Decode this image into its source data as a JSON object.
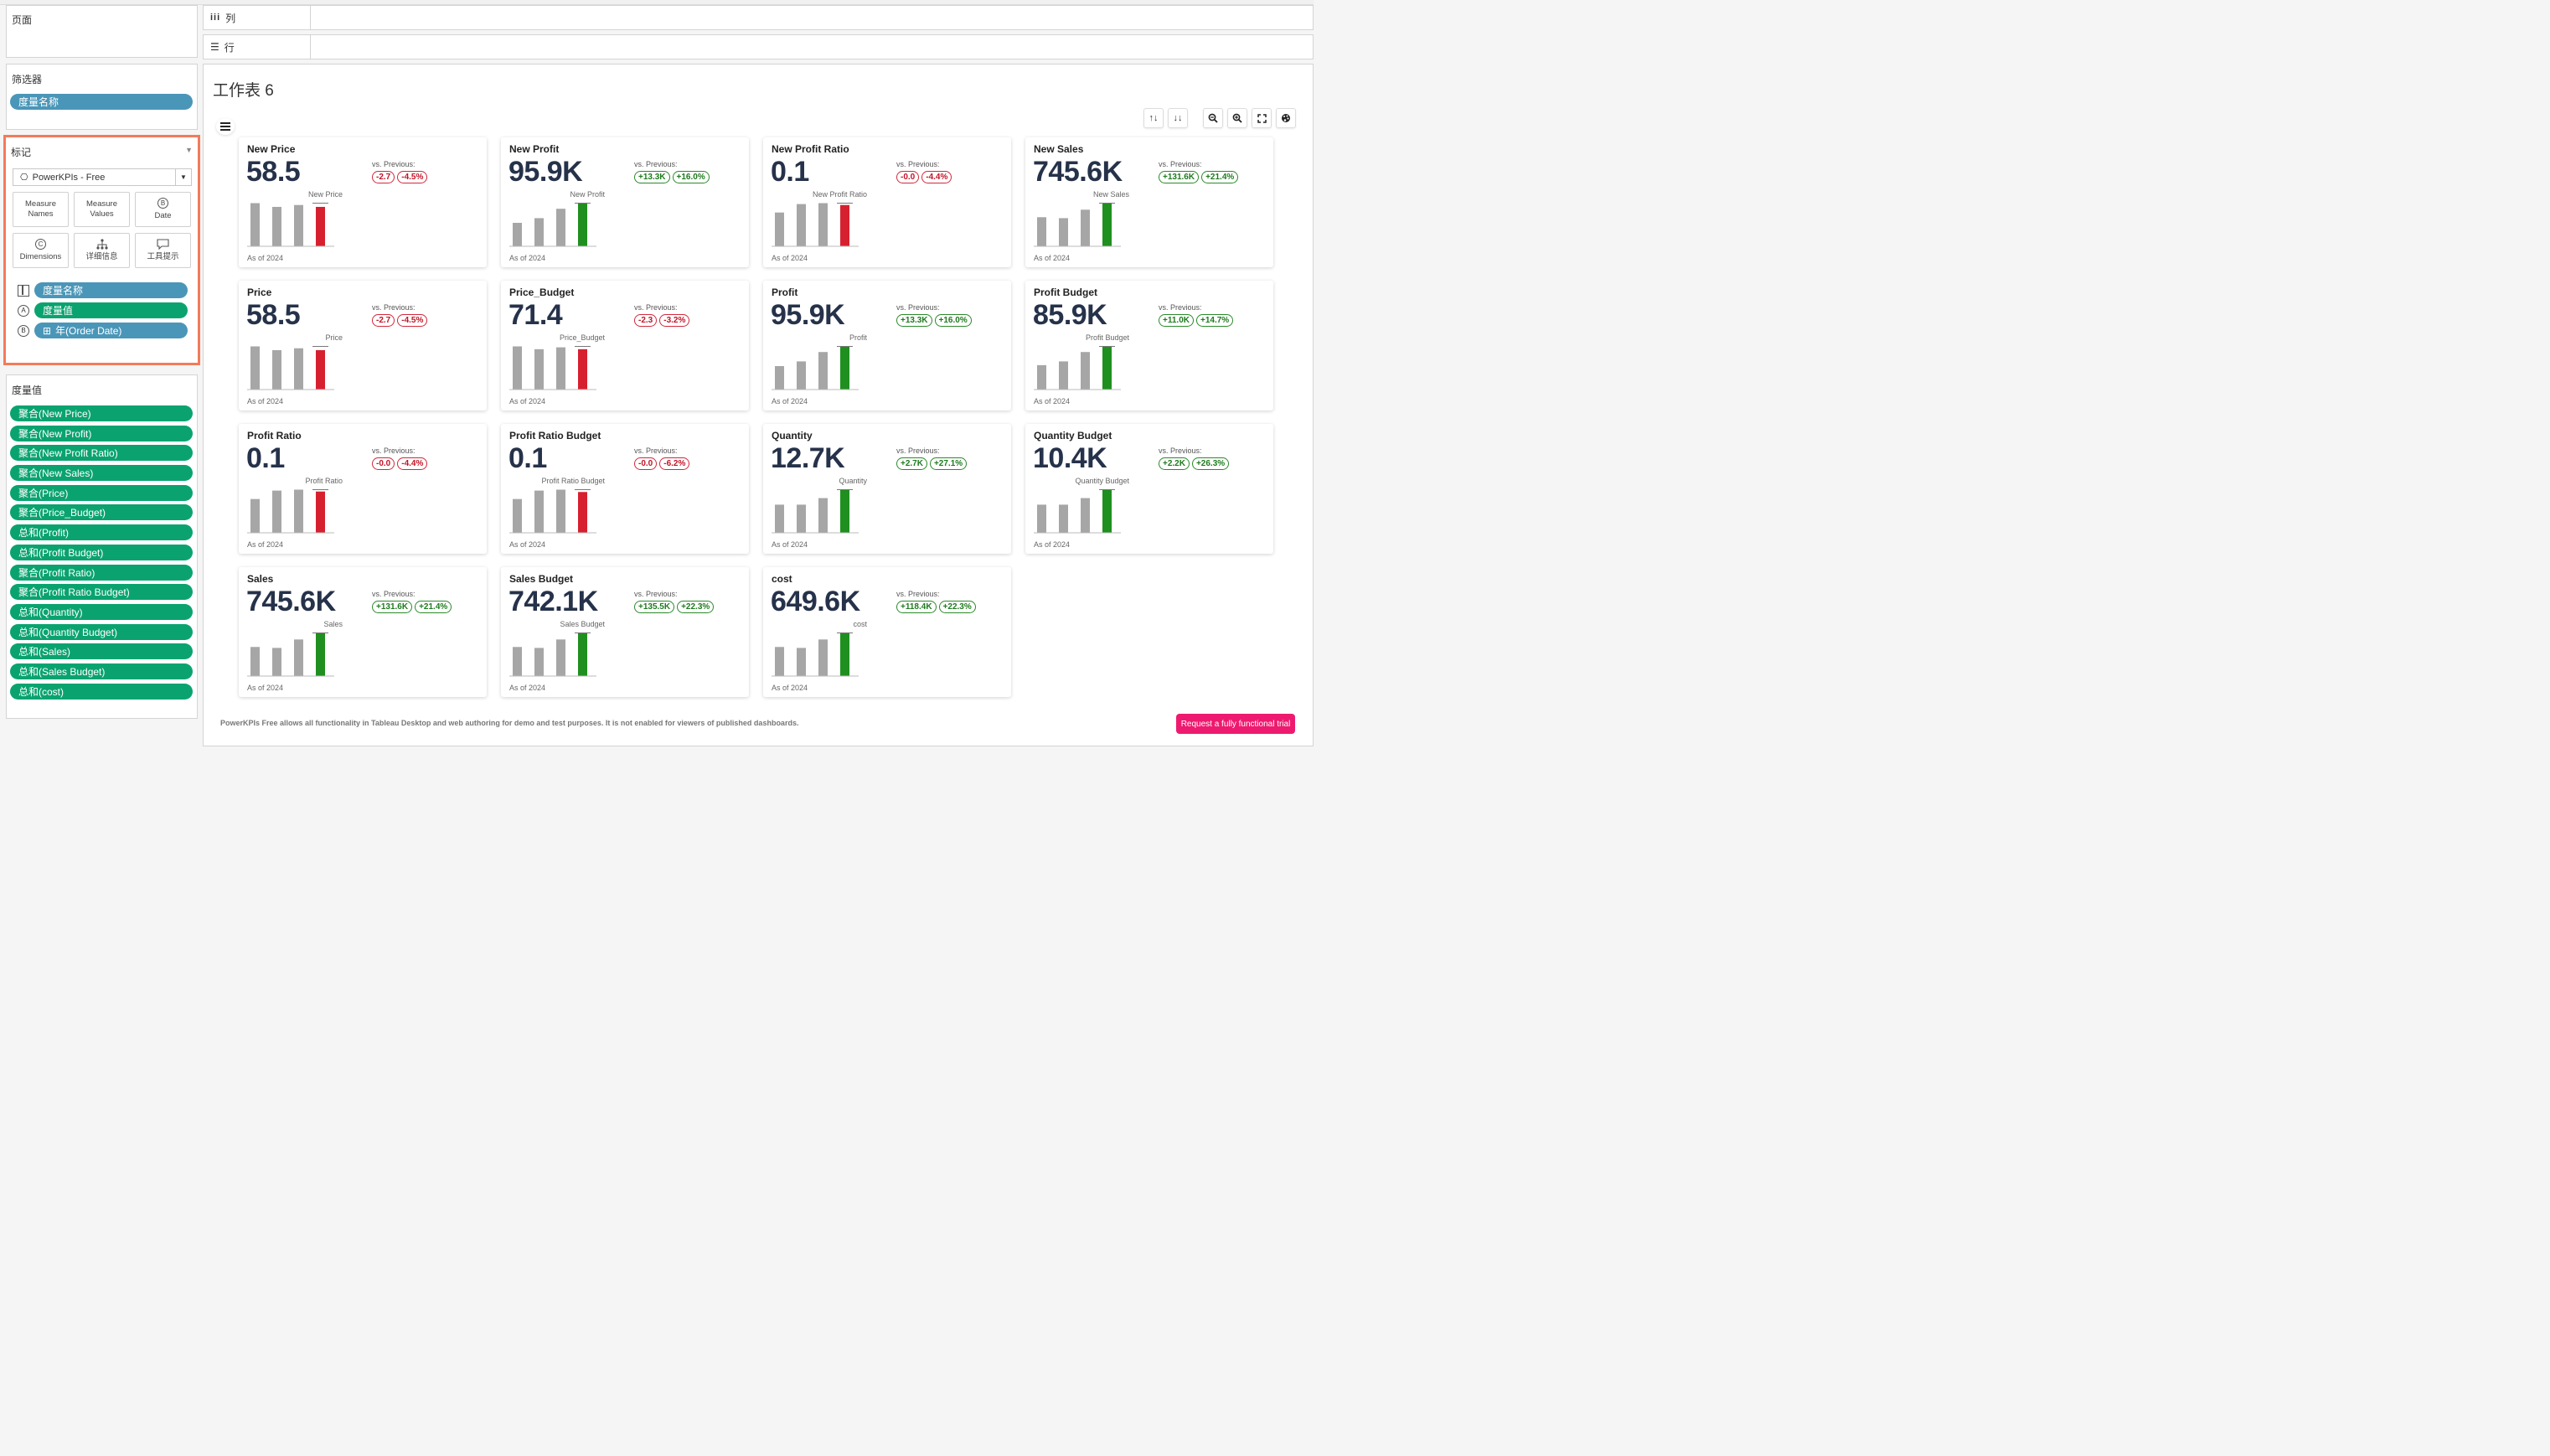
{
  "left_panel": {
    "pages_title": "页面",
    "filters_title": "筛选器",
    "filter_pill": "度量名称",
    "marks_title": "标记",
    "mark_type": "PowerKPIs - Free",
    "mark_buttons": [
      {
        "label": "Measure Names",
        "icon": "none"
      },
      {
        "label": "Measure Values",
        "icon": "none"
      },
      {
        "label": "Date",
        "icon": "b-circle-icon"
      },
      {
        "label": "Dimensions",
        "icon": "c-circle-icon"
      },
      {
        "label": "详细信息",
        "icon": "detail-icon"
      },
      {
        "label": "工具提示",
        "icon": "tooltip-icon"
      }
    ],
    "mark_pills": [
      {
        "label": "度量名称",
        "color": "blue",
        "icon": "columns-icon",
        "prefix": ""
      },
      {
        "label": "度量值",
        "color": "green",
        "icon": "a-circle-icon",
        "prefix": ""
      },
      {
        "label": "年(Order Date)",
        "color": "blue",
        "icon": "b-circle-icon",
        "prefix": "⊞"
      }
    ],
    "measure_values_title": "度量值",
    "measure_values": [
      "聚合(New Price)",
      "聚合(New Profit)",
      "聚合(New Profit Ratio)",
      "聚合(New Sales)",
      "聚合(Price)",
      "聚合(Price_Budget)",
      "总和(Profit)",
      "总和(Profit Budget)",
      "聚合(Profit Ratio)",
      "聚合(Profit Ratio Budget)",
      "总和(Quantity)",
      "总和(Quantity Budget)",
      "总和(Sales)",
      "总和(Sales Budget)",
      "总和(cost)"
    ]
  },
  "shelves": {
    "columns_label": "列",
    "rows_label": "行"
  },
  "sheet": {
    "title": "工作表 6",
    "toolbar_icons": [
      "sort-asc-icon",
      "sort-desc-icon",
      "zoom-out-icon",
      "zoom-in-icon",
      "fullscreen-icon",
      "palette-icon"
    ],
    "menu_icon": "hamburger-icon"
  },
  "colors": {
    "bar_gray": "#a6a6a6",
    "bar_red": "#d7202f",
    "bar_green": "#1f8f1f",
    "pill_blue": "#4a96b8",
    "pill_green": "#0aa370",
    "highlight_border": "#f47a5a",
    "trial_button": "#ee1a6f"
  },
  "kpis": [
    {
      "name": "New Price",
      "value": "58.5",
      "vs_label": "vs. Previous:",
      "delta_abs": "-2.7",
      "delta_pct": "-4.5%",
      "trend": "neg",
      "chart_label": "New Price",
      "bars": [
        0.92,
        0.84,
        0.88,
        0.84
      ],
      "as_of": "As of 2024"
    },
    {
      "name": "New Profit",
      "value": "95.9K",
      "vs_label": "vs. Previous:",
      "delta_abs": "+13.3K",
      "delta_pct": "+16.0%",
      "trend": "pos",
      "chart_label": "New Profit",
      "bars": [
        0.5,
        0.6,
        0.8,
        0.92
      ],
      "as_of": "As of 2024"
    },
    {
      "name": "New Profit Ratio",
      "value": "0.1",
      "vs_label": "vs. Previous:",
      "delta_abs": "-0.0",
      "delta_pct": "-4.4%",
      "trend": "neg",
      "chart_label": "New Profit Ratio",
      "bars": [
        0.72,
        0.9,
        0.92,
        0.88
      ],
      "as_of": "As of 2024"
    },
    {
      "name": "New Sales",
      "value": "745.6K",
      "vs_label": "vs. Previous:",
      "delta_abs": "+131.6K",
      "delta_pct": "+21.4%",
      "trend": "pos",
      "chart_label": "New Sales",
      "bars": [
        0.62,
        0.6,
        0.78,
        0.92
      ],
      "as_of": "As of 2024"
    },
    {
      "name": "Price",
      "value": "58.5",
      "vs_label": "vs. Previous:",
      "delta_abs": "-2.7",
      "delta_pct": "-4.5%",
      "trend": "neg",
      "chart_label": "Price",
      "bars": [
        0.92,
        0.84,
        0.88,
        0.84
      ],
      "as_of": "As of 2024"
    },
    {
      "name": "Price_Budget",
      "value": "71.4",
      "vs_label": "vs. Previous:",
      "delta_abs": "-2.3",
      "delta_pct": "-3.2%",
      "trend": "neg",
      "chart_label": "Price_Budget",
      "bars": [
        0.92,
        0.86,
        0.9,
        0.86
      ],
      "as_of": "As of 2024"
    },
    {
      "name": "Profit",
      "value": "95.9K",
      "vs_label": "vs. Previous:",
      "delta_abs": "+13.3K",
      "delta_pct": "+16.0%",
      "trend": "pos",
      "chart_label": "Profit",
      "bars": [
        0.5,
        0.6,
        0.8,
        0.92
      ],
      "as_of": "As of 2024"
    },
    {
      "name": "Profit Budget",
      "value": "85.9K",
      "vs_label": "vs. Previous:",
      "delta_abs": "+11.0K",
      "delta_pct": "+14.7%",
      "trend": "pos",
      "chart_label": "Profit Budget",
      "bars": [
        0.52,
        0.6,
        0.8,
        0.92
      ],
      "as_of": "As of 2024"
    },
    {
      "name": "Profit Ratio",
      "value": "0.1",
      "vs_label": "vs. Previous:",
      "delta_abs": "-0.0",
      "delta_pct": "-4.4%",
      "trend": "neg",
      "chart_label": "Profit Ratio",
      "bars": [
        0.72,
        0.9,
        0.92,
        0.88
      ],
      "as_of": "As of 2024"
    },
    {
      "name": "Profit Ratio Budget",
      "value": "0.1",
      "vs_label": "vs. Previous:",
      "delta_abs": "-0.0",
      "delta_pct": "-6.2%",
      "trend": "neg",
      "chart_label": "Profit Ratio Budget",
      "bars": [
        0.72,
        0.9,
        0.92,
        0.87
      ],
      "as_of": "As of 2024"
    },
    {
      "name": "Quantity",
      "value": "12.7K",
      "vs_label": "vs. Previous:",
      "delta_abs": "+2.7K",
      "delta_pct": "+27.1%",
      "trend": "pos",
      "chart_label": "Quantity",
      "bars": [
        0.6,
        0.6,
        0.74,
        0.92
      ],
      "as_of": "As of 2024"
    },
    {
      "name": "Quantity Budget",
      "value": "10.4K",
      "vs_label": "vs. Previous:",
      "delta_abs": "+2.2K",
      "delta_pct": "+26.3%",
      "trend": "pos",
      "chart_label": "Quantity Budget",
      "bars": [
        0.6,
        0.6,
        0.74,
        0.92
      ],
      "as_of": "As of 2024"
    },
    {
      "name": "Sales",
      "value": "745.6K",
      "vs_label": "vs. Previous:",
      "delta_abs": "+131.6K",
      "delta_pct": "+21.4%",
      "trend": "pos",
      "chart_label": "Sales",
      "bars": [
        0.62,
        0.6,
        0.78,
        0.92
      ],
      "as_of": "As of 2024"
    },
    {
      "name": "Sales Budget",
      "value": "742.1K",
      "vs_label": "vs. Previous:",
      "delta_abs": "+135.5K",
      "delta_pct": "+22.3%",
      "trend": "pos",
      "chart_label": "Sales Budget",
      "bars": [
        0.62,
        0.6,
        0.78,
        0.92
      ],
      "as_of": "As of 2024"
    },
    {
      "name": "cost",
      "value": "649.6K",
      "vs_label": "vs. Previous:",
      "delta_abs": "+118.4K",
      "delta_pct": "+22.3%",
      "trend": "pos",
      "chart_label": "cost",
      "bars": [
        0.62,
        0.6,
        0.78,
        0.92
      ],
      "as_of": "As of 2024"
    }
  ],
  "footer": {
    "notice": "PowerKPIs Free allows all functionality in Tableau Desktop and web authoring for demo and test purposes. It is not enabled for viewers of published dashboards.",
    "trial_button": "Request a fully functional trial"
  }
}
